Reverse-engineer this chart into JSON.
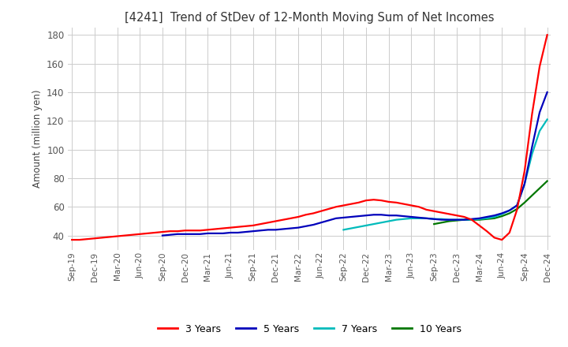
{
  "title": "[4241]  Trend of StDev of 12-Month Moving Sum of Net Incomes",
  "ylabel": "Amount (million yen)",
  "title_color": "#333333",
  "background_color": "#ffffff",
  "grid_color": "#cccccc",
  "ylim": [
    30,
    185
  ],
  "yticks": [
    40,
    60,
    80,
    100,
    120,
    140,
    160,
    180
  ],
  "legend_labels": [
    "3 Years",
    "5 Years",
    "7 Years",
    "10 Years"
  ],
  "legend_colors": [
    "#ff0000",
    "#0000bb",
    "#00bbbb",
    "#007700"
  ],
  "series_3y": [
    37.0,
    37.0,
    37.5,
    38.0,
    38.5,
    39.0,
    39.5,
    40.0,
    40.5,
    41.0,
    41.5,
    42.0,
    42.5,
    43.0,
    43.0,
    43.5,
    43.5,
    43.5,
    44.0,
    44.5,
    45.0,
    45.5,
    46.0,
    46.5,
    47.0,
    48.0,
    49.0,
    50.0,
    51.0,
    52.0,
    53.0,
    54.5,
    55.5,
    57.0,
    58.5,
    60.0,
    61.0,
    62.0,
    63.0,
    64.5,
    65.0,
    64.5,
    63.5,
    63.0,
    62.0,
    61.0,
    60.0,
    58.0,
    57.0,
    56.0,
    55.0,
    54.0,
    53.0,
    51.0,
    47.0,
    43.0,
    38.5,
    37.0,
    42.0,
    58.0,
    85.0,
    125.0,
    158.0,
    180.0
  ],
  "series_5y": [
    null,
    null,
    null,
    null,
    null,
    null,
    null,
    null,
    null,
    null,
    null,
    null,
    40.0,
    40.5,
    41.0,
    41.0,
    41.0,
    41.0,
    41.5,
    41.5,
    41.5,
    42.0,
    42.0,
    42.5,
    43.0,
    43.5,
    44.0,
    44.0,
    44.5,
    45.0,
    45.5,
    46.5,
    47.5,
    49.0,
    50.5,
    52.0,
    52.5,
    53.0,
    53.5,
    54.0,
    54.5,
    54.5,
    54.0,
    54.0,
    53.5,
    53.0,
    52.5,
    52.0,
    51.5,
    51.0,
    51.0,
    51.0,
    51.0,
    51.5,
    52.0,
    53.0,
    54.0,
    55.5,
    57.5,
    61.0,
    76.0,
    102.0,
    126.0,
    140.0
  ],
  "series_7y": [
    null,
    null,
    null,
    null,
    null,
    null,
    null,
    null,
    null,
    null,
    null,
    null,
    null,
    null,
    null,
    null,
    null,
    null,
    null,
    null,
    null,
    null,
    null,
    null,
    null,
    null,
    null,
    null,
    null,
    null,
    null,
    null,
    null,
    null,
    null,
    null,
    44.0,
    45.0,
    46.0,
    47.0,
    48.0,
    49.0,
    50.0,
    51.0,
    51.5,
    52.0,
    52.0,
    52.0,
    51.5,
    51.5,
    51.0,
    51.0,
    51.0,
    51.0,
    51.5,
    52.0,
    53.0,
    55.0,
    57.5,
    61.0,
    76.0,
    97.0,
    113.0,
    121.0
  ],
  "series_10y": [
    null,
    null,
    null,
    null,
    null,
    null,
    null,
    null,
    null,
    null,
    null,
    null,
    null,
    null,
    null,
    null,
    null,
    null,
    null,
    null,
    null,
    null,
    null,
    null,
    null,
    null,
    null,
    null,
    null,
    null,
    null,
    null,
    null,
    null,
    null,
    null,
    null,
    null,
    null,
    null,
    null,
    null,
    null,
    null,
    null,
    null,
    null,
    null,
    48.0,
    49.0,
    50.0,
    50.5,
    51.0,
    51.0,
    51.0,
    51.5,
    52.0,
    53.5,
    55.5,
    58.5,
    63.0,
    68.0,
    73.0,
    78.0
  ],
  "xtick_labels": [
    "Sep-19",
    "Dec-19",
    "Mar-20",
    "Jun-20",
    "Sep-20",
    "Dec-20",
    "Mar-21",
    "Jun-21",
    "Sep-21",
    "Dec-21",
    "Mar-22",
    "Jun-22",
    "Sep-22",
    "Dec-22",
    "Mar-23",
    "Jun-23",
    "Sep-23",
    "Dec-23",
    "Mar-24",
    "Jun-24",
    "Sep-24",
    "Dec-24"
  ],
  "xtick_positions": [
    0,
    3,
    6,
    9,
    12,
    15,
    18,
    21,
    24,
    27,
    30,
    33,
    36,
    39,
    42,
    45,
    48,
    51,
    54,
    57,
    60,
    63
  ]
}
